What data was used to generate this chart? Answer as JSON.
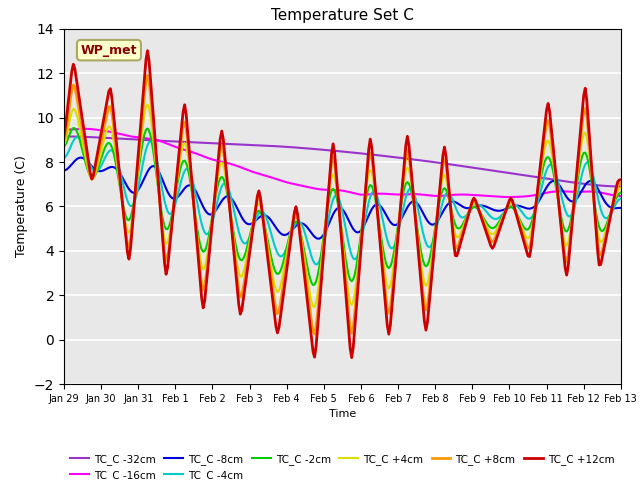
{
  "title": "Temperature Set C",
  "xlabel": "Time",
  "ylabel": "Temperature (C)",
  "xlim": [
    0,
    360
  ],
  "ylim": [
    -2,
    14
  ],
  "yticks": [
    -2,
    0,
    2,
    4,
    6,
    8,
    10,
    12,
    14
  ],
  "xtick_labels": [
    "Jan 29",
    "Jan 30",
    "Jan 31",
    "Feb 1",
    "Feb 2",
    "Feb 3",
    "Feb 4",
    "Feb 5",
    "Feb 6",
    "Feb 7",
    "Feb 8",
    "Feb 9",
    "Feb 10",
    "Feb 11",
    "Feb 12",
    "Feb 13"
  ],
  "xtick_positions": [
    0,
    24,
    48,
    72,
    96,
    120,
    144,
    168,
    192,
    216,
    240,
    264,
    288,
    312,
    336,
    360
  ],
  "bg_color": "#e8e8e8",
  "annotation_text": "WP_met",
  "annotation_color": "#880000",
  "annotation_bg": "#ffffcc",
  "series_order": [
    "TC_C -32cm",
    "TC_C -16cm",
    "TC_C -8cm",
    "TC_C -4cm",
    "TC_C -2cm",
    "TC_C +4cm",
    "TC_C +8cm",
    "TC_C +12cm"
  ],
  "series": {
    "TC_C -32cm": {
      "color": "#9933cc",
      "lw": 1.5
    },
    "TC_C -16cm": {
      "color": "#ff00ff",
      "lw": 1.5
    },
    "TC_C -8cm": {
      "color": "#0000dd",
      "lw": 1.5
    },
    "TC_C -4cm": {
      "color": "#00cccc",
      "lw": 1.5
    },
    "TC_C -2cm": {
      "color": "#00cc00",
      "lw": 1.5
    },
    "TC_C +4cm": {
      "color": "#dddd00",
      "lw": 1.5
    },
    "TC_C +8cm": {
      "color": "#ff9900",
      "lw": 2.0
    },
    "TC_C +12cm": {
      "color": "#cc0000",
      "lw": 2.0
    }
  }
}
